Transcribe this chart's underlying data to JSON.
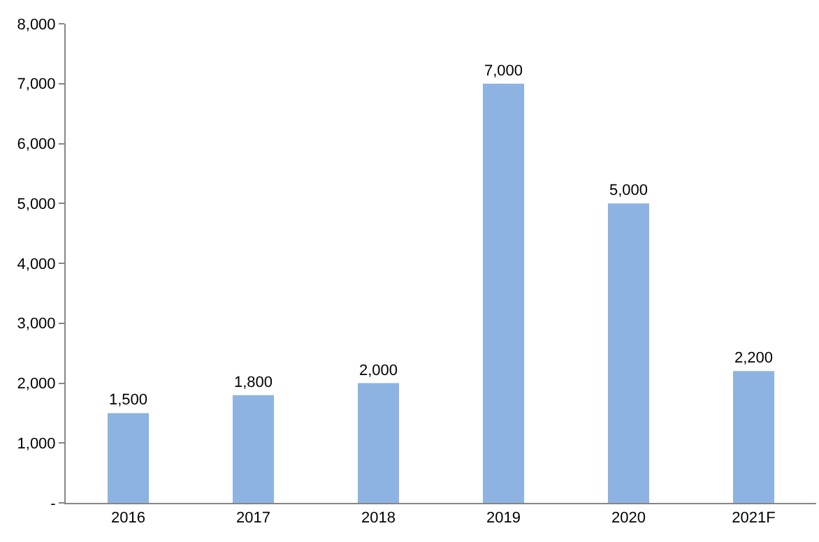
{
  "chart_data": {
    "type": "bar",
    "categories": [
      "2016",
      "2017",
      "2018",
      "2019",
      "2020",
      "2021F"
    ],
    "values": [
      1500,
      1800,
      2000,
      7000,
      5000,
      2200
    ],
    "value_labels": [
      "1,500",
      "1,800",
      "2,000",
      "7,000",
      "5,000",
      "2,200"
    ],
    "color": "#8db3e2",
    "ylim": [
      0,
      8000
    ],
    "yticks": [
      {
        "value": 0,
        "label": "-"
      },
      {
        "value": 1000,
        "label": "1,000"
      },
      {
        "value": 2000,
        "label": "2,000"
      },
      {
        "value": 3000,
        "label": "3,000"
      },
      {
        "value": 4000,
        "label": "4,000"
      },
      {
        "value": 5000,
        "label": "5,000"
      },
      {
        "value": 6000,
        "label": "6,000"
      },
      {
        "value": 7000,
        "label": "7,000"
      },
      {
        "value": 8000,
        "label": "8,000"
      }
    ],
    "legend": false
  }
}
